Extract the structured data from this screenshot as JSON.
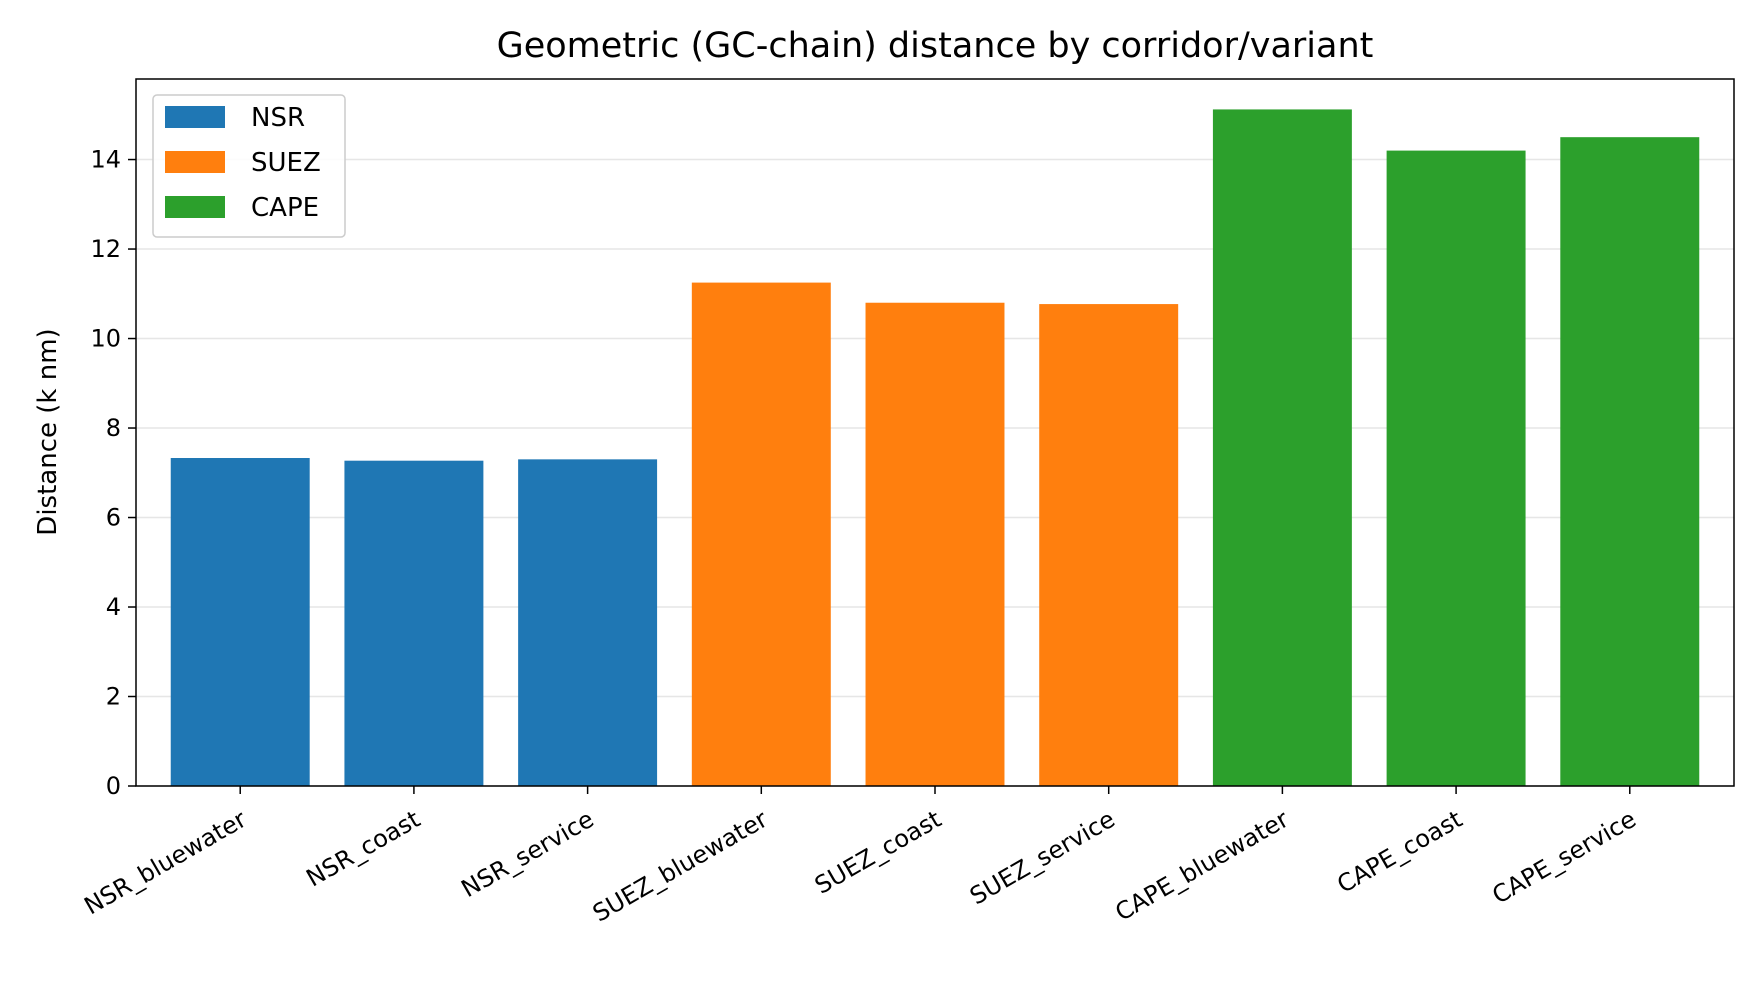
{
  "chart_data": {
    "type": "bar",
    "title": "Geometric (GC-chain) distance by corridor/variant",
    "xlabel": "",
    "ylabel": "Distance (k nm)",
    "ylim": [
      0,
      15.8
    ],
    "yticks": [
      0,
      2,
      4,
      6,
      8,
      10,
      12,
      14
    ],
    "grid": "horizontal",
    "legend_position": "top-left",
    "categories": [
      "NSR_bluewater",
      "NSR_coast",
      "NSR_service",
      "SUEZ_bluewater",
      "SUEZ_coast",
      "SUEZ_service",
      "CAPE_bluewater",
      "CAPE_coast",
      "CAPE_service"
    ],
    "values": [
      7.33,
      7.27,
      7.3,
      11.25,
      10.8,
      10.77,
      15.12,
      14.2,
      14.5
    ],
    "groups": [
      "NSR",
      "NSR",
      "NSR",
      "SUEZ",
      "SUEZ",
      "SUEZ",
      "CAPE",
      "CAPE",
      "CAPE"
    ],
    "legend": [
      {
        "name": "NSR",
        "color": "#1f77b4"
      },
      {
        "name": "SUEZ",
        "color": "#ff7f0e"
      },
      {
        "name": "CAPE",
        "color": "#2ca02c"
      }
    ]
  }
}
